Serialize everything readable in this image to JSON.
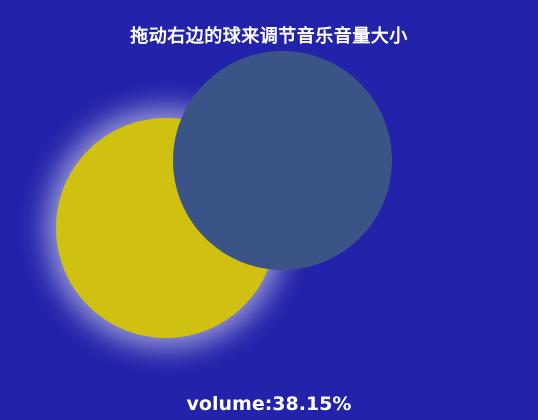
{
  "title": "拖动右边的球来调节音乐音量大小",
  "volume_text": "volume:38.15%",
  "volume_fraction": 0.3815,
  "colors": {
    "background": "#2222aa",
    "sun": "#cfc011",
    "moon": "#3b5487",
    "text": "#ffffff"
  }
}
